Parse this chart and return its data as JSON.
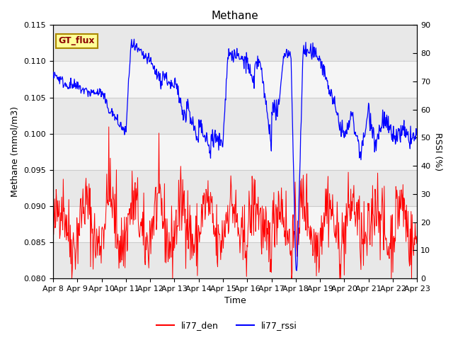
{
  "title": "Methane",
  "ylabel_left": "Methane (mmol/m3)",
  "ylabel_right": "RSSI (%)",
  "xlabel": "Time",
  "ylim_left": [
    0.08,
    0.115
  ],
  "ylim_right": [
    0,
    90
  ],
  "yticks_left": [
    0.08,
    0.085,
    0.09,
    0.095,
    0.1,
    0.105,
    0.11,
    0.115
  ],
  "yticks_right": [
    0,
    10,
    20,
    30,
    40,
    50,
    60,
    70,
    80,
    90
  ],
  "xtick_labels": [
    "Apr 8",
    "Apr 9",
    "Apr 10",
    "Apr 11",
    "Apr 12",
    "Apr 13",
    "Apr 14",
    "Apr 15",
    "Apr 16",
    "Apr 17",
    "Apr 18",
    "Apr 19",
    "Apr 20",
    "Apr 21",
    "Apr 22",
    "Apr 23"
  ],
  "color_red": "#ff0000",
  "color_blue": "#0000ff",
  "legend_label_red": "li77_den",
  "legend_label_blue": "li77_rssi",
  "watermark_text": "GT_flux",
  "watermark_bg": "#ffff99",
  "watermark_border": "#aa8800",
  "band_color_light": "#e8e8e8",
  "band_color_white": "#f5f5f5",
  "fig_bg": "#ffffff",
  "grid_line_color": "#cccccc"
}
